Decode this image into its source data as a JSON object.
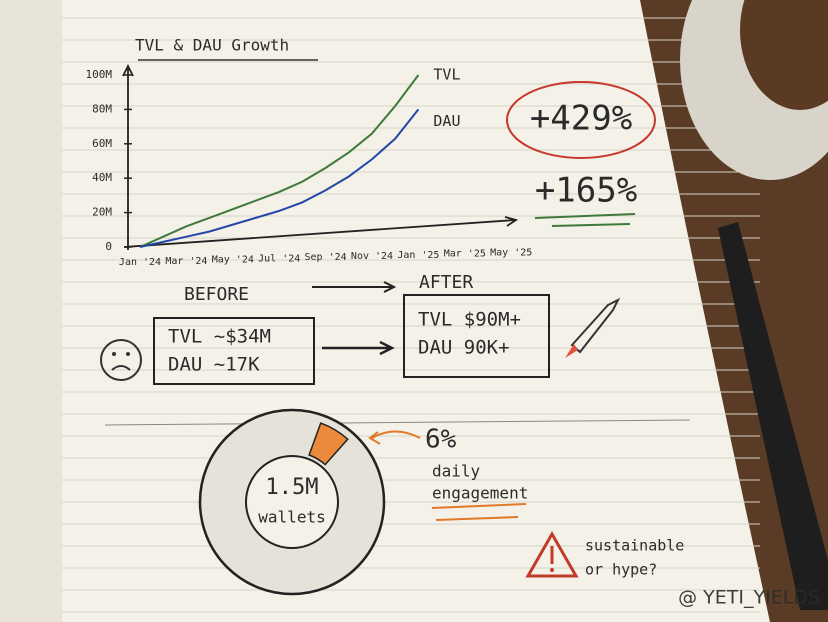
{
  "chart_data": [
    {
      "type": "line",
      "title": "TVL & DAU Growth",
      "categories": [
        "Jan '24",
        null,
        "Mar '24",
        null,
        "May '24",
        null,
        "Jul '24",
        null,
        "Sep '24",
        null,
        "Nov '24",
        null,
        "Jan '25",
        null,
        "Mar '25",
        null,
        "May '25"
      ],
      "series": [
        {
          "name": "TVL",
          "color": "#3f7a3a",
          "values": [
            0,
            6000000,
            12000000,
            17000000,
            22000000,
            27000000,
            32000000,
            38000000,
            46000000,
            55000000,
            66000000,
            82000000,
            100000000,
            null,
            null,
            null,
            null
          ]
        },
        {
          "name": "DAU",
          "color": "#2447a8",
          "values": [
            0,
            3000000,
            6000000,
            9000000,
            13000000,
            17000000,
            21000000,
            26000000,
            33000000,
            41000000,
            51000000,
            63000000,
            80000000,
            null,
            null,
            null,
            null
          ]
        }
      ],
      "ylim": [
        0,
        100000000
      ],
      "yticks": [
        0,
        {
          "value": 20000000,
          "label": "20M"
        },
        {
          "value": 40000000,
          "label": "40M"
        },
        {
          "value": 60000000,
          "label": "60M"
        },
        {
          "value": 80000000,
          "label": "80M"
        },
        {
          "value": 100000000,
          "label": "100M"
        }
      ],
      "annotations": [
        "+429%",
        "+165%"
      ]
    },
    {
      "type": "pie",
      "values": [
        6
      ],
      "value_labels": [
        "6%"
      ],
      "color": "#ec8a3c",
      "center_label": [
        "1.5M",
        "wallets"
      ],
      "caption": [
        "daily",
        "engagement"
      ]
    }
  ],
  "before_after": {
    "before": {
      "title": "BEFORE",
      "lines": [
        "TVL ~$34M",
        "DAU ~17K"
      ]
    },
    "after": {
      "title": "AFTER",
      "lines": [
        "TVL $90M+",
        "DAU 90K+"
      ]
    }
  },
  "warning": [
    "sustainable",
    "or hype?"
  ],
  "watermark": "@ YETI_YIELDS"
}
